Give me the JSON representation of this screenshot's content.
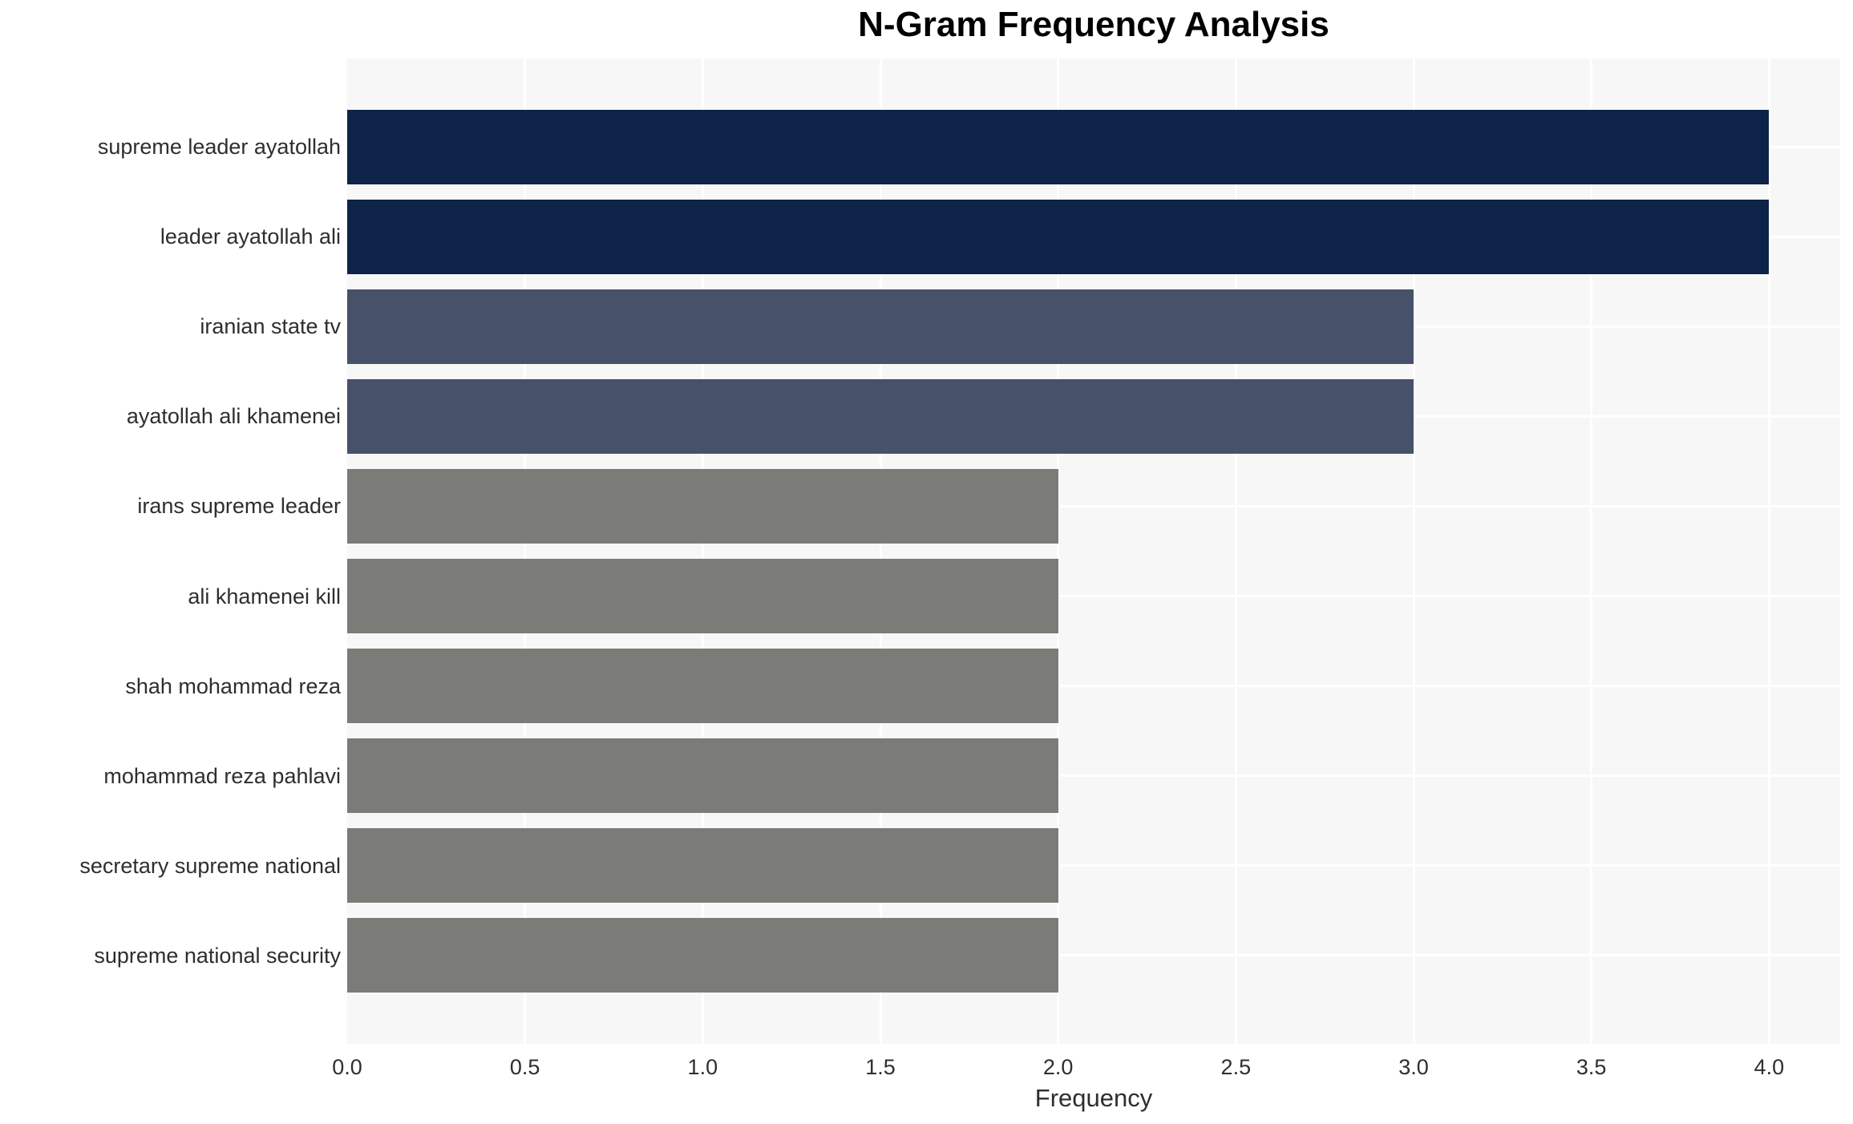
{
  "chart_data": {
    "type": "bar",
    "orientation": "horizontal",
    "title": "N-Gram Frequency Analysis",
    "xlabel": "Frequency",
    "ylabel": "",
    "categories": [
      "supreme leader ayatollah",
      "leader ayatollah ali",
      "iranian state tv",
      "ayatollah ali khamenei",
      "irans supreme leader",
      "ali khamenei kill",
      "shah mohammad reza",
      "mohammad reza pahlavi",
      "secretary supreme national",
      "supreme national security"
    ],
    "values": [
      4,
      4,
      3,
      3,
      2,
      2,
      2,
      2,
      2,
      2
    ],
    "bar_colors": [
      "#0d2347",
      "#0d2347",
      "#475169",
      "#475169",
      "#7b7b77",
      "#7b7b77",
      "#7b7b77",
      "#7b7b77",
      "#7b7b77",
      "#7b7b77"
    ],
    "xlim": [
      0,
      4.2
    ],
    "xticks": [
      0.0,
      0.5,
      1.0,
      1.5,
      2.0,
      2.5,
      3.0,
      3.5,
      4.0
    ],
    "xtick_labels": [
      "0.0",
      "0.5",
      "1.0",
      "1.5",
      "2.0",
      "2.5",
      "3.0",
      "3.5",
      "4.0"
    ],
    "grid": true,
    "grid_color": "#ffffff",
    "plot_bg": "#f7f7f7",
    "legend": false
  }
}
